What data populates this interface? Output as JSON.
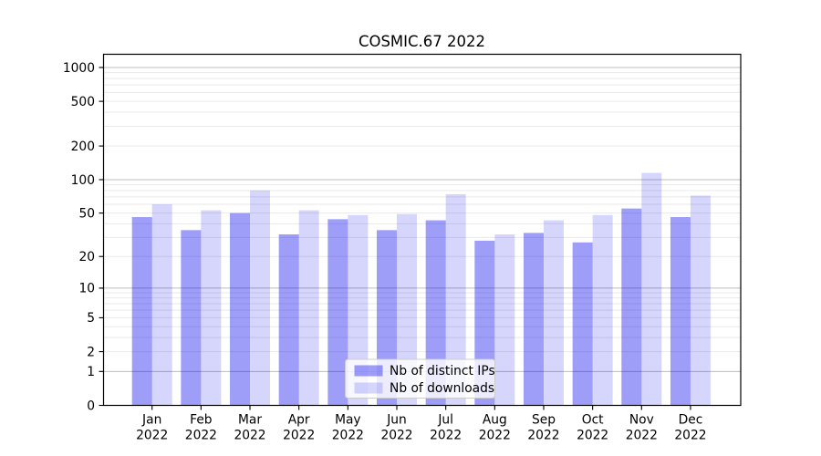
{
  "title": "COSMIC.67 2022",
  "chart_data": {
    "type": "bar",
    "title": "COSMIC.67 2022",
    "categories": [
      "Jan 2022",
      "Feb 2022",
      "Mar 2022",
      "Apr 2022",
      "May 2022",
      "Jun 2022",
      "Jul 2022",
      "Aug 2022",
      "Sep 2022",
      "Oct 2022",
      "Nov 2022",
      "Dec 2022"
    ],
    "series": [
      {
        "name": "Nb of distinct IPs",
        "color": "rgba(0,0,238,0.38)",
        "values": [
          46,
          35,
          50,
          32,
          44,
          35,
          43,
          28,
          33,
          27,
          55,
          46
        ]
      },
      {
        "name": "Nb of downloads",
        "color": "rgba(0,0,238,0.16)",
        "values": [
          60,
          53,
          80,
          53,
          48,
          49,
          74,
          32,
          43,
          48,
          115,
          72
        ]
      }
    ],
    "yscale": "log10(value+1)",
    "yticks": [
      0,
      1,
      2,
      5,
      10,
      20,
      50,
      100,
      200,
      500,
      1000
    ],
    "ylim": [
      0,
      1300
    ],
    "xlabel": "",
    "ylabel": "",
    "grid": true,
    "grid_major_values": [
      1,
      10,
      100,
      1000
    ],
    "grid_minor_step": "2-9 per decade",
    "legend_position": "lower center",
    "colors": {
      "axis": "#000000",
      "grid_major": "#bdbdbd",
      "grid_minor": "#e9e9e9",
      "legend_border": "#cccccc",
      "legend_background": "rgba(255,255,255,0.8)"
    }
  }
}
